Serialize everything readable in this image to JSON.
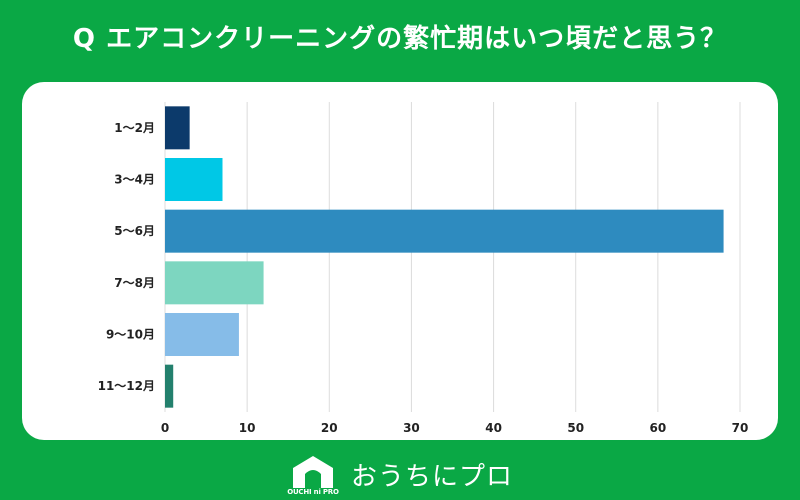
{
  "page": {
    "title": "Q エアコンクリーニングの繁忙期はいつ頃だと思う？",
    "brand_name": "おうちにプロ",
    "brand_logo_text": "OUCHI ni PRO"
  },
  "colors": {
    "background": "#0aa845",
    "card": "#ffffff",
    "grid": "#dcdcdc",
    "axis_text": "#222222"
  },
  "chart_data": {
    "type": "bar",
    "orientation": "horizontal",
    "title": "",
    "xlabel": "",
    "ylabel": "",
    "xlim": [
      0,
      70
    ],
    "ticks": [
      0,
      10,
      20,
      30,
      40,
      50,
      60,
      70
    ],
    "tick_labels": [
      "0",
      "10",
      "20",
      "30",
      "40",
      "50",
      "60",
      "70"
    ],
    "grid": true,
    "categories": [
      "1〜2月",
      "3〜4月",
      "5〜6月",
      "7〜8月",
      "9〜10月",
      "11〜12月"
    ],
    "values": [
      3,
      7,
      68,
      12,
      9,
      1
    ],
    "bar_colors": [
      "#0c3a6b",
      "#00c8e6",
      "#2e8bbf",
      "#7dd6c0",
      "#86bce8",
      "#23806d"
    ]
  }
}
